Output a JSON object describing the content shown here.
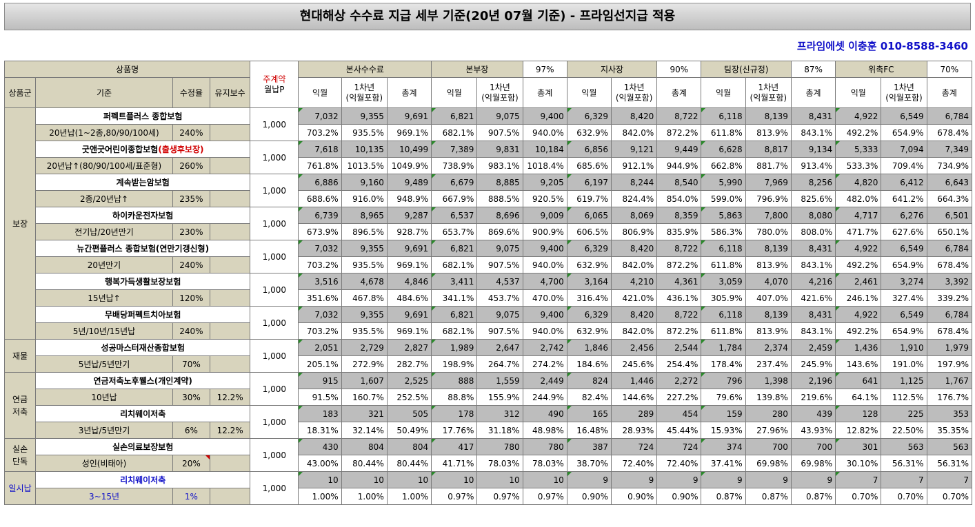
{
  "title": "현대해상 수수료 지급 세부 기준(20년 07월 기준) - 프라임선지급 적용",
  "contact": "프라임에셋 이충훈 010-8588-3460",
  "header": {
    "product": "상품명",
    "premium_top": "주계약",
    "premium_bottom": "월납P",
    "hq": "본사수수료",
    "bu": "본부장",
    "bu_pct": "97%",
    "branch": "지사장",
    "branch_pct": "90%",
    "team": "팀장(신규정)",
    "team_pct": "87%",
    "fc": "위촉FC",
    "fc_pct": "70%",
    "sub": {
      "group": "상품군",
      "criteria": "기준",
      "rate": "수정율",
      "maint": "유지보수",
      "m1": "익월",
      "y1a": "1차년",
      "y1b": "(익월포함)",
      "total": "총계"
    }
  },
  "groups": [
    {
      "name": "보장"
    },
    {
      "name": "재물"
    },
    {
      "name": "연금 저축"
    },
    {
      "name": "실손 단독"
    },
    {
      "name": "일시납"
    }
  ],
  "products": [
    {
      "name": "퍼펙트플러스 종합보험",
      "criteria": "20년납(1~2종,80/90/100세)",
      "rate": "240%",
      "maint": "",
      "premium": "1,000",
      "row1": [
        "7,032",
        "9,355",
        "9,691",
        "6,821",
        "9,075",
        "9,400",
        "6,329",
        "8,420",
        "8,722",
        "6,118",
        "8,139",
        "8,431",
        "4,922",
        "6,549",
        "6,784"
      ],
      "row2": [
        "703.2%",
        "935.5%",
        "969.1%",
        "682.1%",
        "907.5%",
        "940.0%",
        "632.9%",
        "842.0%",
        "872.2%",
        "611.8%",
        "813.9%",
        "843.1%",
        "492.2%",
        "654.9%",
        "678.4%"
      ]
    },
    {
      "name": "굿앤굿어린이종합보험",
      "name_red": "(출생후보장)",
      "criteria": "20년납↑(80/90/100세/표준형)",
      "rate": "260%",
      "maint": "",
      "premium": "1,000",
      "row1": [
        "7,618",
        "10,135",
        "10,499",
        "7,389",
        "9,831",
        "10,184",
        "6,856",
        "9,121",
        "9,449",
        "6,628",
        "8,817",
        "9,134",
        "5,333",
        "7,094",
        "7,349"
      ],
      "row2": [
        "761.8%",
        "1013.5%",
        "1049.9%",
        "738.9%",
        "983.1%",
        "1018.4%",
        "685.6%",
        "912.1%",
        "944.9%",
        "662.8%",
        "881.7%",
        "913.4%",
        "533.3%",
        "709.4%",
        "734.9%"
      ]
    },
    {
      "name": "계속받는암보험",
      "criteria": "2종/20년납↑",
      "rate": "235%",
      "maint": "",
      "premium": "1,000",
      "row1": [
        "6,886",
        "9,160",
        "9,489",
        "6,679",
        "8,885",
        "9,205",
        "6,197",
        "8,244",
        "8,540",
        "5,990",
        "7,969",
        "8,256",
        "4,820",
        "6,412",
        "6,643"
      ],
      "row2": [
        "688.6%",
        "916.0%",
        "948.9%",
        "667.9%",
        "888.5%",
        "920.5%",
        "619.7%",
        "824.4%",
        "854.0%",
        "599.0%",
        "796.9%",
        "825.6%",
        "482.0%",
        "641.2%",
        "664.3%"
      ]
    },
    {
      "name": "하이카운전자보험",
      "criteria": "전기납/20년만기",
      "rate": "230%",
      "maint": "",
      "premium": "1,000",
      "row1": [
        "6,739",
        "8,965",
        "9,287",
        "6,537",
        "8,696",
        "9,009",
        "6,065",
        "8,069",
        "8,359",
        "5,863",
        "7,800",
        "8,080",
        "4,717",
        "6,276",
        "6,501"
      ],
      "row2": [
        "673.9%",
        "896.5%",
        "928.7%",
        "653.7%",
        "869.6%",
        "900.9%",
        "606.5%",
        "806.9%",
        "835.9%",
        "586.3%",
        "780.0%",
        "808.0%",
        "471.7%",
        "627.6%",
        "650.1%"
      ]
    },
    {
      "name": "뉴간편플러스 종합보험(연만기갱신형)",
      "criteria": "20년만기",
      "rate": "240%",
      "maint": "",
      "premium": "1,000",
      "row1": [
        "7,032",
        "9,355",
        "9,691",
        "6,821",
        "9,075",
        "9,400",
        "6,329",
        "8,420",
        "8,722",
        "6,118",
        "8,139",
        "8,431",
        "4,922",
        "6,549",
        "6,784"
      ],
      "row2": [
        "703.2%",
        "935.5%",
        "969.1%",
        "682.1%",
        "907.5%",
        "940.0%",
        "632.9%",
        "842.0%",
        "872.2%",
        "611.8%",
        "813.9%",
        "843.1%",
        "492.2%",
        "654.9%",
        "678.4%"
      ]
    },
    {
      "name": "행복가득생활보장보험",
      "criteria": "15년납↑",
      "rate": "120%",
      "maint": "",
      "premium": "1,000",
      "row1": [
        "3,516",
        "4,678",
        "4,846",
        "3,411",
        "4,537",
        "4,700",
        "3,164",
        "4,210",
        "4,361",
        "3,059",
        "4,070",
        "4,216",
        "2,461",
        "3,274",
        "3,392"
      ],
      "row2": [
        "351.6%",
        "467.8%",
        "484.6%",
        "341.1%",
        "453.7%",
        "470.0%",
        "316.4%",
        "421.0%",
        "436.1%",
        "305.9%",
        "407.0%",
        "421.6%",
        "246.1%",
        "327.4%",
        "339.2%"
      ]
    },
    {
      "name": "무배당퍼펙트치아보험",
      "criteria": "5년/10년/15년납",
      "rate": "240%",
      "maint": "",
      "premium": "1,000",
      "row1": [
        "7,032",
        "9,355",
        "9,691",
        "6,821",
        "9,075",
        "9,400",
        "6,329",
        "8,420",
        "8,722",
        "6,118",
        "8,139",
        "8,431",
        "4,922",
        "6,549",
        "6,784"
      ],
      "row2": [
        "703.2%",
        "935.5%",
        "969.1%",
        "682.1%",
        "907.5%",
        "940.0%",
        "632.9%",
        "842.0%",
        "872.2%",
        "611.8%",
        "813.9%",
        "843.1%",
        "492.2%",
        "654.9%",
        "678.4%"
      ]
    },
    {
      "name": "성공마스터재산종합보험",
      "criteria": "5년납/5년만기",
      "rate": "70%",
      "maint": "",
      "premium": "1,000",
      "row1": [
        "2,051",
        "2,729",
        "2,827",
        "1,989",
        "2,647",
        "2,742",
        "1,846",
        "2,456",
        "2,544",
        "1,784",
        "2,374",
        "2,459",
        "1,436",
        "1,910",
        "1,979"
      ],
      "row2": [
        "205.1%",
        "272.9%",
        "282.7%",
        "198.9%",
        "264.7%",
        "274.2%",
        "184.6%",
        "245.6%",
        "254.4%",
        "178.4%",
        "237.4%",
        "245.9%",
        "143.6%",
        "191.0%",
        "197.9%"
      ]
    },
    {
      "name": "연금저축노후웰스(개인계약)",
      "criteria": "10년납",
      "rate": "30%",
      "maint": "12.2%",
      "premium": "1,000",
      "row1": [
        "915",
        "1,607",
        "2,525",
        "888",
        "1,559",
        "2,449",
        "824",
        "1,446",
        "2,272",
        "796",
        "1,398",
        "2,196",
        "641",
        "1,125",
        "1,767"
      ],
      "row2": [
        "91.5%",
        "160.7%",
        "252.5%",
        "88.8%",
        "155.9%",
        "244.9%",
        "82.4%",
        "144.6%",
        "227.2%",
        "79.6%",
        "139.8%",
        "219.6%",
        "64.1%",
        "112.5%",
        "176.7%"
      ]
    },
    {
      "name": "리치웨이저축",
      "criteria": "3년납/5년만기",
      "rate": "6%",
      "maint": "12.2%",
      "premium": "1,000",
      "row1": [
        "183",
        "321",
        "505",
        "178",
        "312",
        "490",
        "165",
        "289",
        "454",
        "159",
        "280",
        "439",
        "128",
        "225",
        "353"
      ],
      "row2": [
        "18.31%",
        "32.14%",
        "50.49%",
        "17.76%",
        "31.18%",
        "48.98%",
        "16.48%",
        "28.93%",
        "45.44%",
        "15.93%",
        "27.96%",
        "43.93%",
        "12.82%",
        "22.50%",
        "35.35%"
      ]
    },
    {
      "name": "실손의료보장보험",
      "criteria": "성인(비태아)",
      "rate": "20%",
      "maint": "",
      "premium": "1,000",
      "row1": [
        "430",
        "804",
        "804",
        "417",
        "780",
        "780",
        "387",
        "724",
        "724",
        "374",
        "700",
        "700",
        "301",
        "563",
        "563"
      ],
      "row2": [
        "43.00%",
        "80.44%",
        "80.44%",
        "41.71%",
        "78.03%",
        "78.03%",
        "38.70%",
        "72.40%",
        "72.40%",
        "37.41%",
        "69.98%",
        "69.98%",
        "30.10%",
        "56.31%",
        "56.31%"
      ]
    },
    {
      "name": "리치웨이저축",
      "criteria": "3~15년",
      "rate": "1%",
      "maint": "",
      "premium": "1,000",
      "row1": [
        "10",
        "10",
        "10",
        "10",
        "10",
        "10",
        "9",
        "9",
        "9",
        "9",
        "9",
        "9",
        "7",
        "7",
        "7"
      ],
      "row2": [
        "1.00%",
        "1.00%",
        "1.00%",
        "0.97%",
        "0.97%",
        "0.97%",
        "0.90%",
        "0.90%",
        "0.90%",
        "0.87%",
        "0.87%",
        "0.87%",
        "0.70%",
        "0.70%",
        "0.70%"
      ]
    }
  ]
}
